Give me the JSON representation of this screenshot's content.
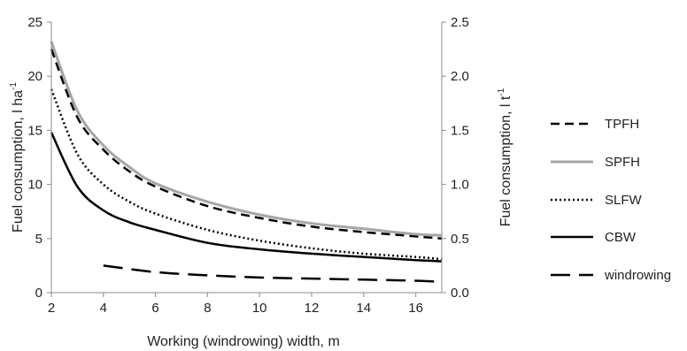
{
  "chart_data": {
    "type": "line",
    "xlabel": "Working (windrowing) width, m",
    "ylabel_left": "Fuel consumption, l ha",
    "ylabel_left_sup": "-1",
    "ylabel_right": "Fuel consumption, l t",
    "ylabel_right_sup": "-1",
    "xlim": [
      2,
      17
    ],
    "ylim_left": [
      0,
      25
    ],
    "ylim_right": [
      0.0,
      2.5
    ],
    "x_ticks": [
      "2",
      "4",
      "6",
      "8",
      "10",
      "12",
      "14",
      "16"
    ],
    "y_left_ticks": [
      "0",
      "5",
      "10",
      "15",
      "20",
      "25"
    ],
    "y_right_ticks": [
      "0.0",
      "0.5",
      "1.0",
      "1.5",
      "2.0",
      "2.5"
    ],
    "grid": false,
    "legend_position": "right",
    "series": [
      {
        "name": "TPFH",
        "color": "#000000",
        "style": "dash",
        "x": [
          2,
          3,
          4,
          5,
          6,
          8,
          10,
          12,
          14,
          16,
          17
        ],
        "y": [
          22.5,
          16.2,
          13.2,
          11.2,
          9.8,
          8.0,
          6.9,
          6.1,
          5.6,
          5.2,
          5.0
        ]
      },
      {
        "name": "SPFH",
        "color": "#a6a6a6",
        "style": "solid",
        "x": [
          2,
          3,
          4,
          5,
          6,
          8,
          10,
          12,
          14,
          16,
          17
        ],
        "y": [
          23.2,
          16.8,
          13.6,
          11.6,
          10.1,
          8.4,
          7.2,
          6.4,
          5.9,
          5.4,
          5.3
        ]
      },
      {
        "name": "SLFW",
        "color": "#000000",
        "style": "dot",
        "x": [
          2,
          3,
          4,
          5,
          6,
          8,
          10,
          12,
          14,
          16,
          17
        ],
        "y": [
          18.8,
          12.8,
          10.0,
          8.4,
          7.3,
          5.8,
          4.8,
          4.1,
          3.6,
          3.3,
          3.1
        ]
      },
      {
        "name": "CBW",
        "color": "#000000",
        "style": "solid",
        "x": [
          2,
          3,
          4,
          5,
          6,
          8,
          10,
          12,
          14,
          16,
          17
        ],
        "y": [
          14.8,
          9.8,
          7.6,
          6.5,
          5.8,
          4.6,
          4.0,
          3.6,
          3.3,
          3.0,
          2.9
        ]
      },
      {
        "name": "windrowing",
        "color": "#000000",
        "style": "longdash",
        "x": [
          4,
          6,
          8,
          10,
          12,
          14,
          16,
          17
        ],
        "y": [
          2.5,
          1.9,
          1.6,
          1.4,
          1.3,
          1.2,
          1.1,
          1.0
        ]
      }
    ]
  }
}
